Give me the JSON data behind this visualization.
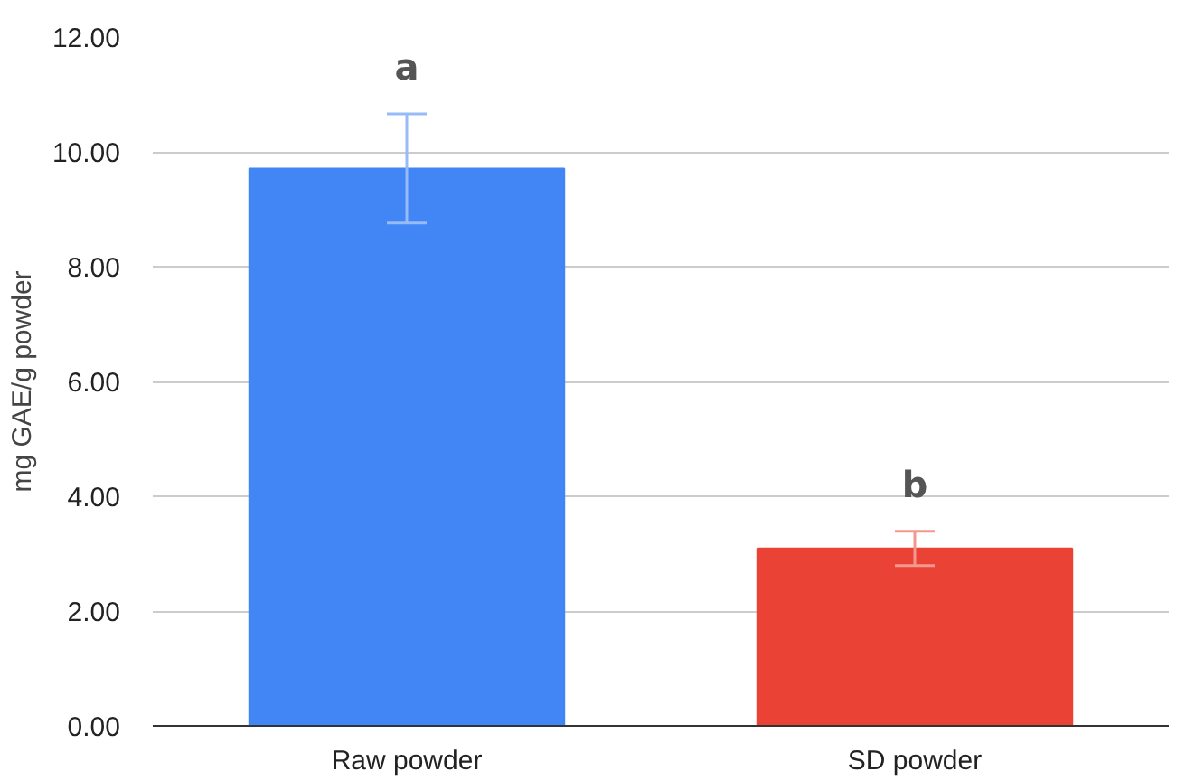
{
  "chart_data": {
    "type": "bar",
    "ylabel": "mg GAE/g powder",
    "categories": [
      "Raw powder",
      "SD powder"
    ],
    "values": [
      9.71,
      3.09
    ],
    "colors": [
      "#4285f4",
      "#ea4335"
    ],
    "errors": [
      0.95,
      0.3
    ],
    "ylim": [
      0,
      12
    ],
    "yticks": [
      {
        "value": 0,
        "label": "0.00"
      },
      {
        "value": 2,
        "label": "2.00"
      },
      {
        "value": 4,
        "label": "4.00"
      },
      {
        "value": 6,
        "label": "6.00"
      },
      {
        "value": 8,
        "label": "8.00"
      },
      {
        "value": 10,
        "label": "10.00"
      },
      {
        "value": 12,
        "label": "12.00"
      }
    ],
    "grid": "y",
    "annotations": [
      "a",
      "b"
    ]
  }
}
